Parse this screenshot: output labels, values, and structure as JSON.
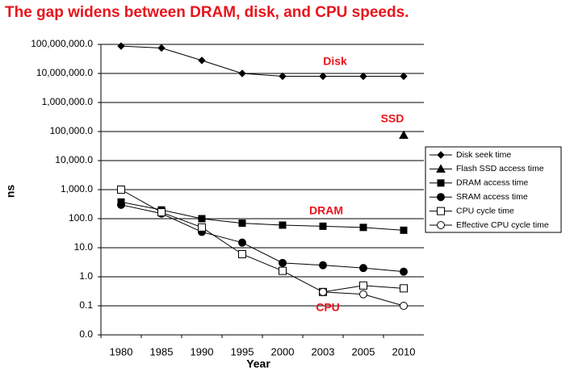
{
  "chart_data": {
    "type": "line",
    "title": "The gap widens between DRAM, disk, and CPU speeds.",
    "x_label": "Year",
    "y_label": "ns",
    "categories": [
      "1980",
      "1985",
      "1990",
      "1995",
      "2000",
      "2003",
      "2005",
      "2010"
    ],
    "log_scale": true,
    "grid": true,
    "legend": "right",
    "ylim": [
      0.01,
      100000000
    ],
    "yticks": [
      {
        "value": 0.01,
        "label": "0.0"
      },
      {
        "value": 0.1,
        "label": "0.1"
      },
      {
        "value": 1,
        "label": "1.0"
      },
      {
        "value": 10,
        "label": "10.0"
      },
      {
        "value": 100,
        "label": "100.0"
      },
      {
        "value": 1000,
        "label": "1,000.0"
      },
      {
        "value": 10000,
        "label": "10,000.0"
      },
      {
        "value": 100000,
        "label": "100,000.0"
      },
      {
        "value": 1000000,
        "label": "1,000,000.0"
      },
      {
        "value": 10000000,
        "label": "10,000,000.0"
      },
      {
        "value": 100000000,
        "label": "100,000,000.0"
      }
    ],
    "series": [
      {
        "name": "Disk seek time",
        "color": "#000000",
        "marker": "diamond",
        "values": [
          87500000,
          75000000,
          28000000,
          10000000,
          8000000,
          8000000,
          8000000,
          8000000
        ]
      },
      {
        "name": "Flash SSD access time",
        "color": "#000000",
        "marker": "triangle",
        "values": [
          null,
          null,
          null,
          null,
          null,
          null,
          null,
          75000
        ]
      },
      {
        "name": "DRAM access time",
        "color": "#000000",
        "marker": "square",
        "values": [
          375,
          200,
          100,
          70,
          60,
          55,
          50,
          40
        ]
      },
      {
        "name": "SRAM access time",
        "color": "#000000",
        "marker": "circle",
        "values": [
          300,
          150,
          35,
          15,
          3,
          2.5,
          2,
          1.5
        ]
      },
      {
        "name": "CPU cycle time",
        "color": "#000000",
        "marker": "open-square",
        "values": [
          1000,
          166,
          50,
          6,
          1.6,
          0.3,
          0.5,
          0.4
        ]
      },
      {
        "name": "Effective CPU cycle time",
        "color": "#000000",
        "marker": "open-circle",
        "values": [
          null,
          null,
          null,
          null,
          null,
          0.3,
          0.25,
          0.1
        ]
      }
    ],
    "annotations": [
      "Disk",
      "SSD",
      "DRAM",
      "CPU"
    ]
  }
}
